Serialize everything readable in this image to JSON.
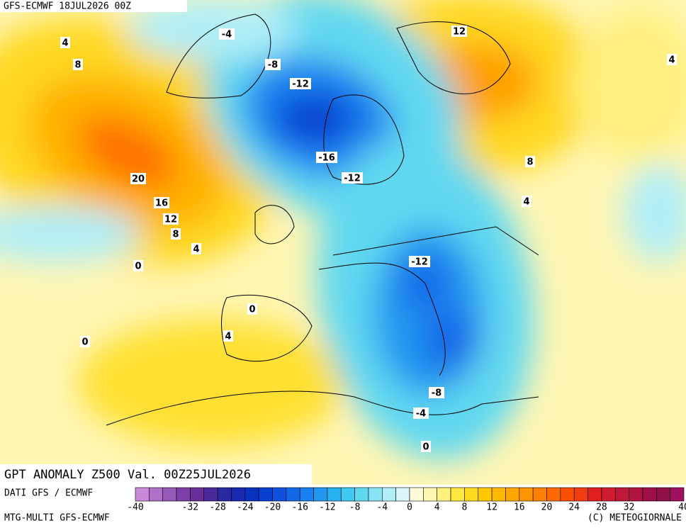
{
  "header": {
    "title": "GFS-ECMWF 18JUL2026 00Z"
  },
  "map": {
    "labels": [
      4,
      8,
      -4,
      -8,
      -12,
      12,
      4,
      -16,
      -12,
      20,
      16,
      12,
      8,
      8,
      4,
      4,
      0,
      -12,
      0,
      4,
      0,
      -8,
      -4,
      0
    ]
  },
  "footer": {
    "title": "GPT ANOMALY Z500 Val. 00Z25JUL2026",
    "source": "DATI GFS / ECMWF",
    "model": "MTG-MULTI GFS-ECMWF",
    "copyright": "(C) METEOGIORNALE"
  },
  "colorbar": {
    "ticks": [
      -40,
      -32,
      -28,
      -24,
      -20,
      -16,
      -12,
      -8,
      -4,
      0,
      4,
      8,
      12,
      16,
      20,
      24,
      28,
      32,
      40
    ],
    "colors": [
      "#c88ad8",
      "#b070c8",
      "#9858b8",
      "#7e40a8",
      "#6a2e98",
      "#4a2a9a",
      "#2a2aa0",
      "#1a2ab0",
      "#0a30c0",
      "#0a40d0",
      "#1050e0",
      "#1468e8",
      "#1880f0",
      "#2098f0",
      "#28b0f0",
      "#40c8f0",
      "#60d8f0",
      "#88e4f4",
      "#b0eef8",
      "#d8f6fa",
      "#fffbd8",
      "#fff6b0",
      "#fff080",
      "#ffe840",
      "#ffd820",
      "#ffc800",
      "#ffb800",
      "#ffa600",
      "#ff9400",
      "#ff8000",
      "#ff6a00",
      "#f85000",
      "#f03c10",
      "#e02020",
      "#d01c30",
      "#c01838",
      "#b01440",
      "#a01048",
      "#901048",
      "#a01060"
    ]
  }
}
